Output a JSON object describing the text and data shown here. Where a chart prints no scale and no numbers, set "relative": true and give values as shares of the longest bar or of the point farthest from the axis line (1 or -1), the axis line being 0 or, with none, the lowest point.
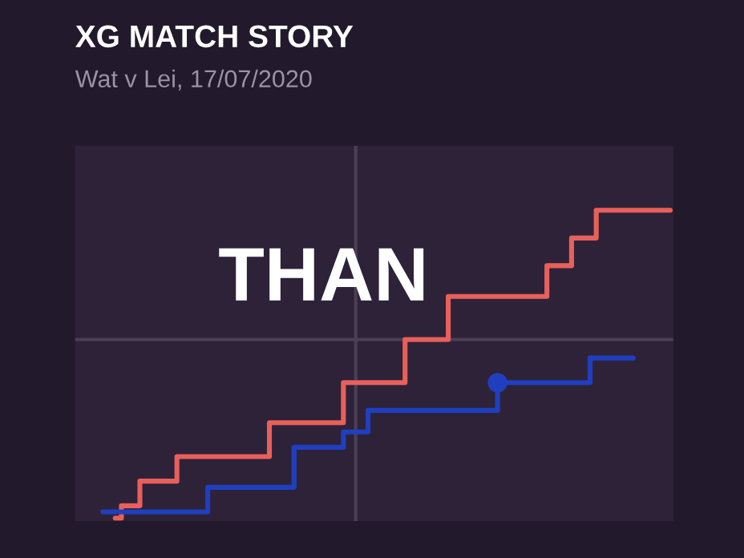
{
  "chart_data": {
    "type": "step",
    "title": "XG MATCH STORY",
    "subtitle": "Wat v Lei, 17/07/2020",
    "relative": true,
    "annotations": [
      "THAN"
    ],
    "categories": [
      null,
      null,
      null,
      null,
      null,
      null,
      null,
      null,
      null,
      null,
      null,
      null,
      null,
      null,
      null,
      null,
      null,
      null,
      null,
      null,
      null,
      null,
      null,
      null,
      null,
      null,
      null,
      null,
      null,
      null,
      null,
      null,
      null,
      null,
      null,
      null,
      null,
      null,
      null,
      null,
      null,
      null,
      null,
      null,
      null,
      null,
      null,
      null,
      null,
      null,
      null,
      null,
      null,
      null,
      null,
      null,
      null,
      null,
      null,
      null,
      null,
      null,
      null,
      null,
      null,
      null,
      null,
      null,
      null,
      null,
      null,
      null,
      null,
      null,
      null,
      null,
      null,
      null,
      null,
      null,
      null,
      null,
      null,
      null,
      null,
      null,
      null,
      null,
      null,
      null,
      null,
      null,
      null,
      null,
      null,
      null,
      null
    ],
    "series": [
      {
        "color": "#e8605a",
        "values": [
          null,
          null,
          null,
          null,
          null,
          null,
          0,
          0.04,
          0.04,
          0.04,
          0.12,
          0.12,
          0.12,
          0.12,
          0.12,
          0.12,
          0.2,
          0.2,
          0.2,
          0.2,
          0.2,
          0.2,
          0.2,
          0.2,
          0.2,
          0.2,
          0.2,
          0.2,
          0.2,
          0.2,
          0.2,
          0.31,
          0.31,
          0.31,
          0.31,
          0.31,
          0.31,
          0.31,
          0.31,
          0.31,
          0.31,
          0.31,
          0.31,
          0.44,
          0.44,
          0.44,
          0.44,
          0.44,
          0.44,
          0.44,
          0.44,
          0.44,
          0.44,
          0.58,
          0.58,
          0.58,
          0.58,
          0.58,
          0.58,
          0.58,
          0.72,
          0.72,
          0.72,
          0.72,
          0.72,
          0.72,
          0.72,
          0.72,
          0.72,
          0.72,
          0.72,
          0.72,
          0.72,
          0.72,
          0.72,
          0.72,
          0.82,
          0.82,
          0.82,
          0.82,
          0.91,
          0.91,
          0.91,
          0.91,
          1,
          1,
          1,
          1,
          1,
          1,
          1,
          1,
          1,
          1,
          1,
          1,
          1
        ]
      },
      {
        "color": "#1f3fbf",
        "marker": "none",
        "values": [
          null,
          null,
          null,
          null,
          0.02,
          0.02,
          0.02,
          0.02,
          0.02,
          0.02,
          0.02,
          0.02,
          0.02,
          0.02,
          0.02,
          0.02,
          0.02,
          0.02,
          0.02,
          0.02,
          0.02,
          0.1,
          0.1,
          0.1,
          0.1,
          0.1,
          0.1,
          0.1,
          0.1,
          0.1,
          0.1,
          0.1,
          0.1,
          0.1,
          0.1,
          0.23,
          0.23,
          0.23,
          0.23,
          0.23,
          0.23,
          0.23,
          0.23,
          0.28,
          0.28,
          0.28,
          0.28,
          0.35,
          0.35,
          0.35,
          0.35,
          0.35,
          0.35,
          0.35,
          0.35,
          0.35,
          0.35,
          0.35,
          0.35,
          0.35,
          0.35,
          0.35,
          0.35,
          0.35,
          0.35,
          0.35,
          0.35,
          0.35,
          0.44,
          0.44,
          0.44,
          0.44,
          0.44,
          0.44,
          0.44,
          0.44,
          0.44,
          0.44,
          0.44,
          0.44,
          0.44,
          0.44,
          0.44,
          0.52,
          0.52,
          0.52,
          0.52,
          0.52,
          0.52,
          0.52,
          0.52,
          null,
          null,
          null,
          null,
          null,
          null
        ]
      }
    ],
    "ref_lines": [
      {
        "axis": "y",
        "value": 0.58,
        "color": "#4a3f55"
      }
    ]
  }
}
